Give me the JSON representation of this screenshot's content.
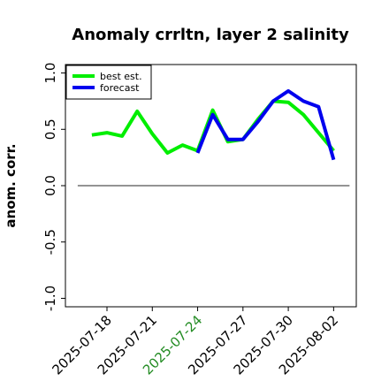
{
  "chart_data": {
    "type": "line",
    "title": "Anomaly crrltn, layer 2 salinity",
    "xlabel": "",
    "ylabel": "anom. corr.",
    "ylim": [
      -1.0,
      1.0
    ],
    "yticks": [
      "-1.0",
      "-0.5",
      "0.0",
      "0.5",
      "1.0"
    ],
    "x": [
      "2025-07-17",
      "2025-07-18",
      "2025-07-19",
      "2025-07-20",
      "2025-07-21",
      "2025-07-22",
      "2025-07-23",
      "2025-07-24",
      "2025-07-25",
      "2025-07-26",
      "2025-07-27",
      "2025-07-28",
      "2025-07-29",
      "2025-07-30",
      "2025-07-31",
      "2025-08-01",
      "2025-08-02"
    ],
    "xticks": [
      "2025-07-18",
      "2025-07-21",
      "2025-07-24",
      "2025-07-27",
      "2025-07-30",
      "2025-08-02"
    ],
    "highlight_tick": "2025-07-24",
    "highlight_color": "#228B22",
    "zero_line": 0.0,
    "legend_position": "top-left",
    "series": [
      {
        "name": "best est.",
        "color": "#00ee00",
        "x": [
          "2025-07-17",
          "2025-07-18",
          "2025-07-19",
          "2025-07-20",
          "2025-07-21",
          "2025-07-22",
          "2025-07-23",
          "2025-07-24",
          "2025-07-25",
          "2025-07-26",
          "2025-07-27",
          "2025-07-28",
          "2025-07-29",
          "2025-07-30",
          "2025-07-31",
          "2025-08-01",
          "2025-08-02"
        ],
        "values": [
          0.45,
          0.47,
          0.44,
          0.66,
          0.46,
          0.29,
          0.36,
          0.31,
          0.67,
          0.39,
          0.41,
          0.59,
          0.75,
          0.74,
          0.63,
          0.47,
          0.31
        ]
      },
      {
        "name": "forecast",
        "color": "#0000ee",
        "x": [
          "2025-07-24",
          "2025-07-25",
          "2025-07-26",
          "2025-07-27",
          "2025-07-28",
          "2025-07-29",
          "2025-07-30",
          "2025-07-31",
          "2025-08-01",
          "2025-08-02"
        ],
        "values": [
          0.29,
          0.63,
          0.41,
          0.41,
          0.57,
          0.75,
          0.84,
          0.75,
          0.7,
          0.23
        ]
      }
    ]
  }
}
